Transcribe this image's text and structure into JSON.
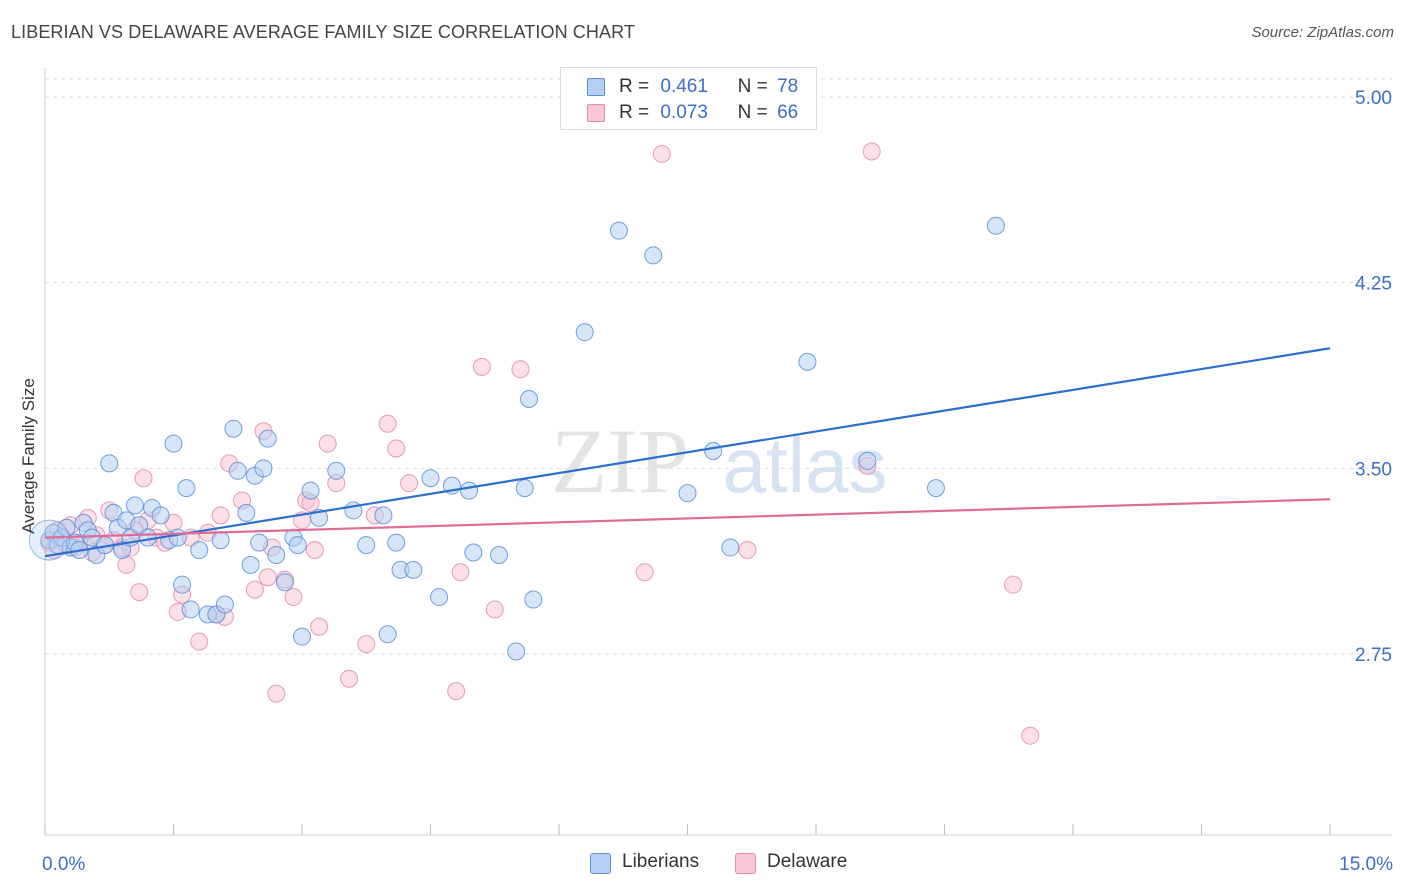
{
  "header": {
    "title": "LIBERIAN VS DELAWARE AVERAGE FAMILY SIZE CORRELATION CHART",
    "source": "Source: ZipAtlas.com"
  },
  "watermark": {
    "zip": "ZIP",
    "atlas": "atlas"
  },
  "legend": {
    "r_label": "R =",
    "n_label": "N =",
    "rows": [
      {
        "r": "0.461",
        "n": "78"
      },
      {
        "r": "0.073",
        "n": "66"
      }
    ]
  },
  "colors": {
    "liberians_fill": "#b5d0f3",
    "liberians_stroke": "#5a8fd8",
    "liberians_line": "#2c6fcf",
    "delaware_fill": "#f8c6d6",
    "delaware_stroke": "#e58aa9",
    "delaware_line": "#e06b97",
    "tick_label": "#3b6fc7",
    "grid": "#dddddd"
  },
  "chart_data": {
    "type": "scatter",
    "title": "LIBERIAN VS DELAWARE AVERAGE FAMILY SIZE CORRELATION CHART",
    "xlabel": "",
    "ylabel": "Average Family Size",
    "xlim": [
      0,
      15
    ],
    "ylim": [
      2.2,
      5.1
    ],
    "x_tick_labels": [
      "0.0%",
      "15.0%"
    ],
    "y_ticks": [
      2.75,
      3.5,
      4.25,
      5.0
    ],
    "y_tick_labels": [
      "2.75",
      "3.50",
      "4.25",
      "5.00"
    ],
    "grid": "horizontal dashed",
    "legend_position": "top-center",
    "series": [
      {
        "name": "Liberians",
        "r": 0.461,
        "n": 78,
        "trend": {
          "x": [
            0,
            15
          ],
          "y": [
            3.145,
            3.985
          ]
        },
        "points": [
          [
            0.05,
            3.21
          ],
          [
            0.1,
            3.24
          ],
          [
            0.15,
            3.19
          ],
          [
            0.2,
            3.22
          ],
          [
            0.25,
            3.26
          ],
          [
            0.3,
            3.18
          ],
          [
            0.35,
            3.2
          ],
          [
            0.4,
            3.17
          ],
          [
            0.45,
            3.28
          ],
          [
            0.5,
            3.25
          ],
          [
            0.55,
            3.22
          ],
          [
            0.6,
            3.15
          ],
          [
            0.7,
            3.19
          ],
          [
            0.75,
            3.52
          ],
          [
            0.8,
            3.32
          ],
          [
            0.85,
            3.26
          ],
          [
            0.9,
            3.17
          ],
          [
            0.95,
            3.29
          ],
          [
            1.0,
            3.22
          ],
          [
            1.05,
            3.35
          ],
          [
            1.1,
            3.27
          ],
          [
            1.2,
            3.22
          ],
          [
            1.25,
            3.34
          ],
          [
            1.35,
            3.31
          ],
          [
            1.45,
            3.21
          ],
          [
            1.5,
            3.6
          ],
          [
            1.55,
            3.22
          ],
          [
            1.6,
            3.03
          ],
          [
            1.65,
            3.42
          ],
          [
            1.7,
            2.93
          ],
          [
            1.8,
            3.17
          ],
          [
            1.9,
            2.91
          ],
          [
            2.0,
            2.91
          ],
          [
            2.05,
            3.21
          ],
          [
            2.1,
            2.95
          ],
          [
            2.2,
            3.66
          ],
          [
            2.25,
            3.49
          ],
          [
            2.35,
            3.32
          ],
          [
            2.4,
            3.11
          ],
          [
            2.45,
            3.47
          ],
          [
            2.5,
            3.2
          ],
          [
            2.55,
            3.5
          ],
          [
            2.6,
            3.62
          ],
          [
            2.7,
            3.15
          ],
          [
            2.8,
            3.04
          ],
          [
            2.9,
            3.22
          ],
          [
            2.95,
            3.19
          ],
          [
            3.0,
            2.82
          ],
          [
            3.1,
            3.41
          ],
          [
            3.2,
            3.3
          ],
          [
            3.4,
            3.49
          ],
          [
            3.6,
            3.33
          ],
          [
            3.75,
            3.19
          ],
          [
            3.95,
            3.31
          ],
          [
            4.0,
            2.83
          ],
          [
            4.1,
            3.2
          ],
          [
            4.15,
            3.09
          ],
          [
            4.3,
            3.09
          ],
          [
            4.5,
            3.46
          ],
          [
            4.6,
            2.98
          ],
          [
            4.75,
            3.43
          ],
          [
            4.95,
            3.41
          ],
          [
            5.0,
            3.16
          ],
          [
            5.3,
            3.15
          ],
          [
            5.5,
            2.76
          ],
          [
            5.6,
            3.42
          ],
          [
            5.65,
            3.78
          ],
          [
            5.7,
            2.97
          ],
          [
            6.3,
            4.05
          ],
          [
            6.7,
            4.46
          ],
          [
            7.1,
            4.36
          ],
          [
            7.5,
            3.4
          ],
          [
            7.8,
            3.57
          ],
          [
            8.0,
            3.18
          ],
          [
            8.9,
            3.93
          ],
          [
            9.6,
            3.53
          ],
          [
            10.4,
            3.42
          ],
          [
            11.1,
            4.48
          ]
        ]
      },
      {
        "name": "Delaware",
        "r": 0.073,
        "n": 66,
        "trend": {
          "x": [
            0,
            15
          ],
          "y": [
            3.22,
            3.375
          ]
        },
        "points": [
          [
            0.05,
            3.2
          ],
          [
            0.1,
            3.17
          ],
          [
            0.15,
            3.25
          ],
          [
            0.2,
            3.22
          ],
          [
            0.25,
            3.19
          ],
          [
            0.3,
            3.27
          ],
          [
            0.35,
            3.18
          ],
          [
            0.4,
            3.2
          ],
          [
            0.5,
            3.3
          ],
          [
            0.55,
            3.16
          ],
          [
            0.6,
            3.23
          ],
          [
            0.7,
            3.19
          ],
          [
            0.75,
            3.33
          ],
          [
            0.8,
            3.21
          ],
          [
            0.9,
            3.18
          ],
          [
            0.95,
            3.11
          ],
          [
            1.0,
            3.18
          ],
          [
            1.05,
            3.25
          ],
          [
            1.1,
            3.0
          ],
          [
            1.15,
            3.46
          ],
          [
            1.2,
            3.29
          ],
          [
            1.3,
            3.22
          ],
          [
            1.4,
            3.2
          ],
          [
            1.5,
            3.28
          ],
          [
            1.55,
            2.92
          ],
          [
            1.6,
            2.99
          ],
          [
            1.7,
            3.22
          ],
          [
            1.8,
            2.8
          ],
          [
            1.9,
            3.24
          ],
          [
            2.0,
            2.91
          ],
          [
            2.05,
            3.31
          ],
          [
            2.1,
            2.9
          ],
          [
            2.15,
            3.52
          ],
          [
            2.3,
            3.37
          ],
          [
            2.45,
            3.01
          ],
          [
            2.55,
            3.65
          ],
          [
            2.6,
            3.06
          ],
          [
            2.65,
            3.18
          ],
          [
            2.7,
            2.59
          ],
          [
            2.8,
            3.05
          ],
          [
            2.9,
            2.98
          ],
          [
            3.0,
            3.29
          ],
          [
            3.05,
            3.37
          ],
          [
            3.1,
            3.36
          ],
          [
            3.15,
            3.17
          ],
          [
            3.2,
            2.86
          ],
          [
            3.3,
            3.6
          ],
          [
            3.4,
            3.44
          ],
          [
            3.55,
            2.65
          ],
          [
            3.75,
            2.79
          ],
          [
            3.85,
            3.31
          ],
          [
            4.0,
            3.68
          ],
          [
            4.1,
            3.58
          ],
          [
            4.25,
            3.44
          ],
          [
            4.8,
            2.6
          ],
          [
            4.85,
            3.08
          ],
          [
            5.1,
            3.91
          ],
          [
            5.25,
            2.93
          ],
          [
            5.55,
            3.9
          ],
          [
            7.0,
            3.08
          ],
          [
            7.2,
            4.77
          ],
          [
            8.2,
            3.17
          ],
          [
            9.6,
            3.51
          ],
          [
            9.65,
            4.78
          ],
          [
            11.3,
            3.03
          ],
          [
            11.5,
            2.42
          ]
        ]
      }
    ]
  }
}
